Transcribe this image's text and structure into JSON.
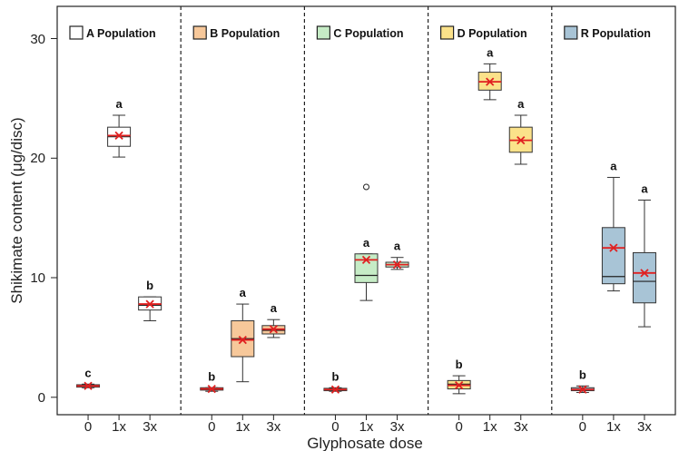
{
  "chart_data": {
    "type": "box",
    "xlabel": "Glyphosate dose",
    "ylabel": "Shikimate content (μg/disc)",
    "ylim": [
      -1.5,
      32
    ],
    "yticks": [
      0,
      10,
      20,
      30
    ],
    "tick_labels": {
      "y": [
        "0",
        "10",
        "20",
        "30"
      ]
    },
    "categories": [
      "0",
      "1x",
      "3x"
    ],
    "grid": false,
    "panels": [
      {
        "legend": "A Population",
        "color": "#ffffff",
        "boxes": [
          {
            "dose": "0",
            "min": 0.8,
            "q1": 0.85,
            "median": 0.95,
            "q3": 1.05,
            "max": 1.1,
            "mean": 0.95,
            "letter": "c",
            "outliers": []
          },
          {
            "dose": "1x",
            "min": 20.1,
            "q1": 21.0,
            "median": 21.8,
            "q3": 22.6,
            "max": 23.6,
            "mean": 21.9,
            "letter": "a",
            "outliers": []
          },
          {
            "dose": "3x",
            "min": 6.4,
            "q1": 7.3,
            "median": 7.7,
            "q3": 8.4,
            "max": 8.4,
            "mean": 7.8,
            "letter": "b",
            "outliers": []
          }
        ]
      },
      {
        "legend": "B Population",
        "color": "#f7c89a",
        "boxes": [
          {
            "dose": "0",
            "min": 0.5,
            "q1": 0.6,
            "median": 0.7,
            "q3": 0.8,
            "max": 0.8,
            "mean": 0.7,
            "letter": "b",
            "outliers": []
          },
          {
            "dose": "1x",
            "min": 1.3,
            "q1": 3.4,
            "median": 4.9,
            "q3": 6.4,
            "max": 7.8,
            "mean": 4.8,
            "letter": "a",
            "outliers": []
          },
          {
            "dose": "3x",
            "min": 5.0,
            "q1": 5.3,
            "median": 5.6,
            "q3": 6.0,
            "max": 6.5,
            "mean": 5.7,
            "letter": "a",
            "outliers": []
          }
        ]
      },
      {
        "legend": "C Population",
        "color": "#c6ecc6",
        "boxes": [
          {
            "dose": "0",
            "min": 0.5,
            "q1": 0.55,
            "median": 0.65,
            "q3": 0.75,
            "max": 0.8,
            "mean": 0.65,
            "letter": "b",
            "outliers": []
          },
          {
            "dose": "1x",
            "min": 8.1,
            "q1": 9.6,
            "median": 10.2,
            "q3": 12.0,
            "max": 12.0,
            "mean": 11.5,
            "letter": "a",
            "outliers": [
              17.6
            ]
          },
          {
            "dose": "3x",
            "min": 10.7,
            "q1": 10.9,
            "median": 11.1,
            "q3": 11.3,
            "max": 11.7,
            "mean": 11.1,
            "letter": "a",
            "outliers": []
          }
        ]
      },
      {
        "legend": "D Population",
        "color": "#fbe28a",
        "boxes": [
          {
            "dose": "0",
            "min": 0.3,
            "q1": 0.7,
            "median": 1.1,
            "q3": 1.4,
            "max": 1.8,
            "mean": 1.0,
            "letter": "b",
            "outliers": []
          },
          {
            "dose": "1x",
            "min": 24.9,
            "q1": 25.7,
            "median": 26.4,
            "q3": 27.2,
            "max": 27.9,
            "mean": 26.4,
            "letter": "a",
            "outliers": []
          },
          {
            "dose": "3x",
            "min": 19.5,
            "q1": 20.5,
            "median": 21.5,
            "q3": 22.6,
            "max": 23.6,
            "mean": 21.5,
            "letter": "a",
            "outliers": []
          }
        ]
      },
      {
        "legend": "R Population",
        "color": "#a8c4d6",
        "boxes": [
          {
            "dose": "0",
            "min": 0.4,
            "q1": 0.55,
            "median": 0.65,
            "q3": 0.8,
            "max": 0.95,
            "mean": 0.65,
            "letter": "b",
            "outliers": []
          },
          {
            "dose": "1x",
            "min": 8.9,
            "q1": 9.5,
            "median": 10.1,
            "q3": 14.2,
            "max": 18.4,
            "mean": 12.5,
            "letter": "a",
            "outliers": []
          },
          {
            "dose": "3x",
            "min": 5.9,
            "q1": 7.9,
            "median": 9.7,
            "q3": 12.1,
            "max": 16.5,
            "mean": 10.4,
            "letter": "a",
            "outliers": []
          }
        ]
      }
    ]
  }
}
